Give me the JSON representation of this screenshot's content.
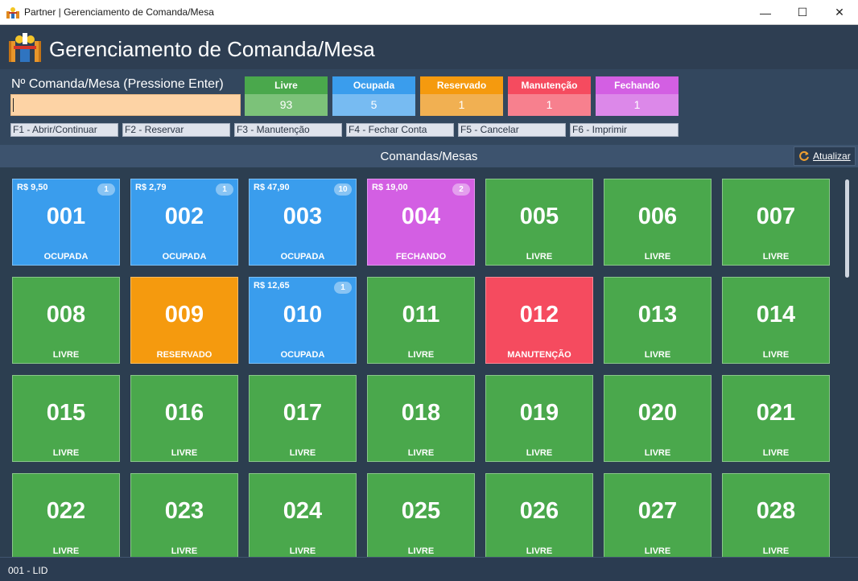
{
  "window": {
    "title": "Partner | Gerenciamento de Comanda/Mesa",
    "controls": {
      "minimize": "—",
      "maximize": "☐",
      "close": "✕"
    }
  },
  "header": {
    "title": "Gerenciamento de Comanda/Mesa",
    "logo_icon": "restaurant-table-icon"
  },
  "panel": {
    "input_label": "Nº Comanda/Mesa (Pressione Enter)",
    "input_value": "",
    "input_placeholder": ""
  },
  "status_summary": [
    {
      "label": "Livre",
      "count": "93",
      "color_head": "#4aa84c",
      "color_body": "#7cc279"
    },
    {
      "label": "Ocupada",
      "count": "5",
      "color_head": "#3a9ded",
      "color_body": "#77bbf2"
    },
    {
      "label": "Reservado",
      "count": "1",
      "color_head": "#f59a0e",
      "color_body": "#f1b052"
    },
    {
      "label": "Manutenção",
      "count": "1",
      "color_head": "#f54b5f",
      "color_body": "#f7808e"
    },
    {
      "label": "Fechando",
      "count": "1",
      "color_head": "#d35fe3",
      "color_body": "#dc88e9"
    }
  ],
  "shortcuts": [
    "F1 - Abrir/Continuar",
    "F2 - Reservar",
    "F3 - Manutenção",
    "F4 - Fechar Conta",
    "F5 - Cancelar",
    "F6 - Imprimir"
  ],
  "section": {
    "title": "Comandas/Mesas",
    "refresh_label": "Atualizar",
    "refresh_icon": "refresh-icon"
  },
  "status_colors": {
    "OCUPADA": "#3a9ded",
    "FECHANDO": "#d35fe3",
    "LIVRE": "#4aa84c",
    "RESERVADO": "#f59a0e",
    "MANUTENÇÃO": "#f54b5f"
  },
  "tiles": [
    {
      "number": "001",
      "status": "OCUPADA",
      "price": "R$ 9,50",
      "badge": "1"
    },
    {
      "number": "002",
      "status": "OCUPADA",
      "price": "R$ 2,79",
      "badge": "1"
    },
    {
      "number": "003",
      "status": "OCUPADA",
      "price": "R$ 47,90",
      "badge": "10"
    },
    {
      "number": "004",
      "status": "FECHANDO",
      "price": "R$ 19,00",
      "badge": "2"
    },
    {
      "number": "005",
      "status": "LIVRE",
      "price": "",
      "badge": ""
    },
    {
      "number": "006",
      "status": "LIVRE",
      "price": "",
      "badge": ""
    },
    {
      "number": "007",
      "status": "LIVRE",
      "price": "",
      "badge": ""
    },
    {
      "number": "008",
      "status": "LIVRE",
      "price": "",
      "badge": ""
    },
    {
      "number": "009",
      "status": "RESERVADO",
      "price": "",
      "badge": ""
    },
    {
      "number": "010",
      "status": "OCUPADA",
      "price": "R$ 12,65",
      "badge": "1"
    },
    {
      "number": "011",
      "status": "LIVRE",
      "price": "",
      "badge": ""
    },
    {
      "number": "012",
      "status": "MANUTENÇÃO",
      "price": "",
      "badge": ""
    },
    {
      "number": "013",
      "status": "LIVRE",
      "price": "",
      "badge": ""
    },
    {
      "number": "014",
      "status": "LIVRE",
      "price": "",
      "badge": ""
    },
    {
      "number": "015",
      "status": "LIVRE",
      "price": "",
      "badge": ""
    },
    {
      "number": "016",
      "status": "LIVRE",
      "price": "",
      "badge": ""
    },
    {
      "number": "017",
      "status": "LIVRE",
      "price": "",
      "badge": ""
    },
    {
      "number": "018",
      "status": "LIVRE",
      "price": "",
      "badge": ""
    },
    {
      "number": "019",
      "status": "LIVRE",
      "price": "",
      "badge": ""
    },
    {
      "number": "020",
      "status": "LIVRE",
      "price": "",
      "badge": ""
    },
    {
      "number": "021",
      "status": "LIVRE",
      "price": "",
      "badge": ""
    },
    {
      "number": "022",
      "status": "LIVRE",
      "price": "",
      "badge": ""
    },
    {
      "number": "023",
      "status": "LIVRE",
      "price": "",
      "badge": ""
    },
    {
      "number": "024",
      "status": "LIVRE",
      "price": "",
      "badge": ""
    },
    {
      "number": "025",
      "status": "LIVRE",
      "price": "",
      "badge": ""
    },
    {
      "number": "026",
      "status": "LIVRE",
      "price": "",
      "badge": ""
    },
    {
      "number": "027",
      "status": "LIVRE",
      "price": "",
      "badge": ""
    },
    {
      "number": "028",
      "status": "LIVRE",
      "price": "",
      "badge": ""
    }
  ],
  "statusbar": {
    "text": "001 - LID"
  }
}
